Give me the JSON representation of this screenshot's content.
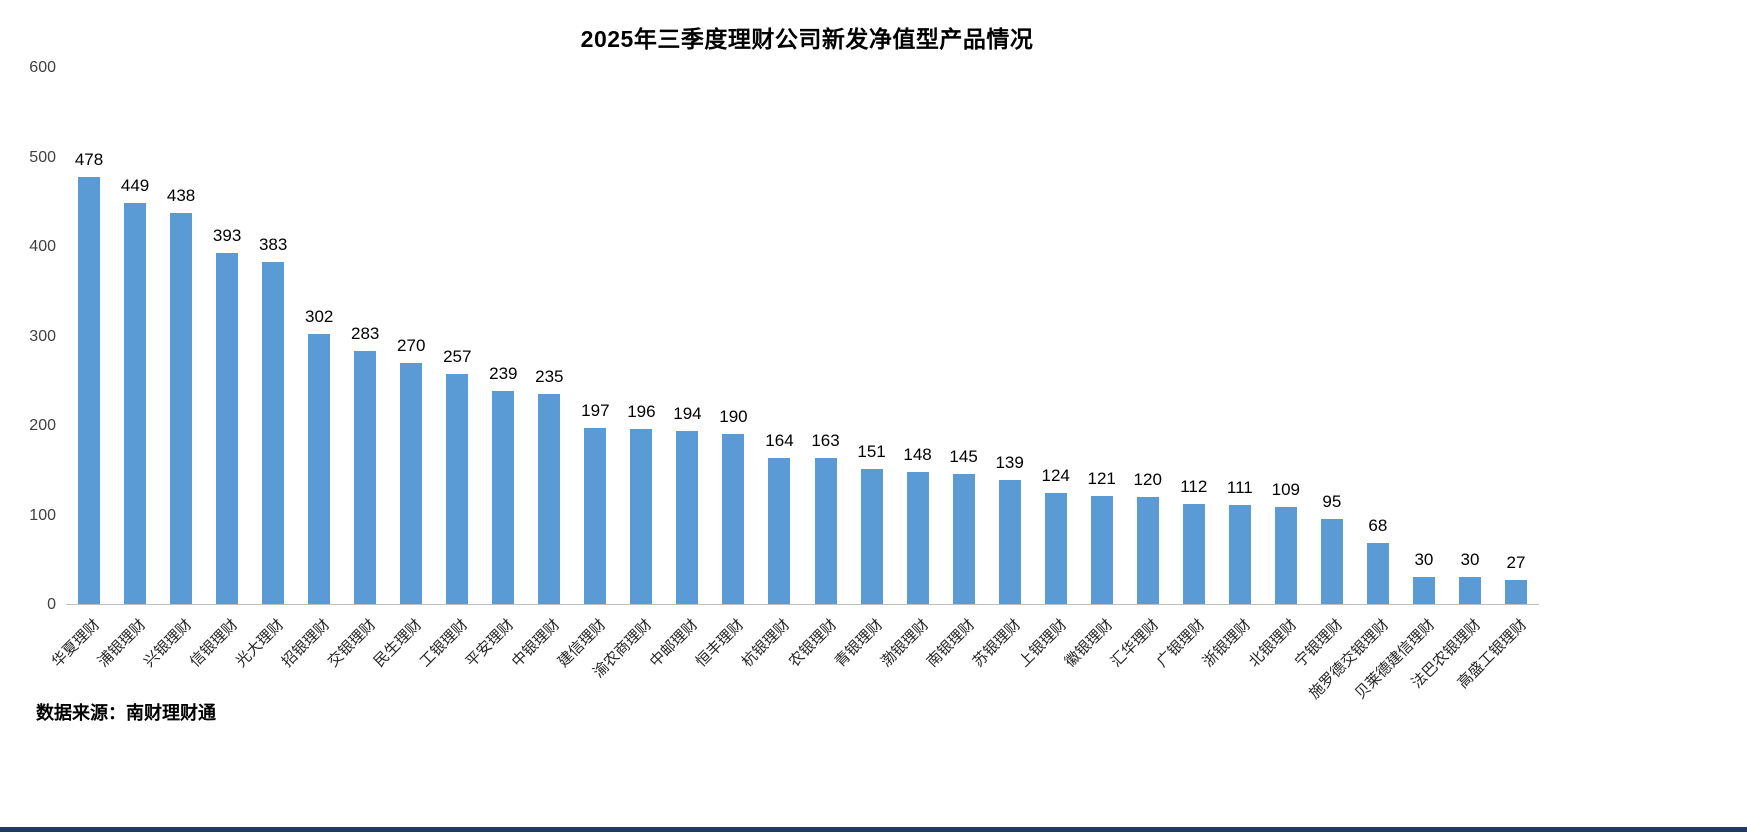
{
  "chart": {
    "title": "2025年三季度理财公司新发净值型产品情况",
    "source": "数据来源：南财理财通"
  },
  "colors": {
    "bar": "#5B9BD5",
    "axis_line": "#bfbfbf",
    "footer_bar": "#1F3864"
  },
  "chart_data": {
    "type": "bar",
    "title": "2025年三季度理财公司新发净值型产品情况",
    "categories": [
      "华夏理财",
      "浦银理财",
      "兴银理财",
      "信银理财",
      "光大理财",
      "招银理财",
      "交银理财",
      "民生理财",
      "工银理财",
      "平安理财",
      "中银理财",
      "建信理财",
      "渝农商理财",
      "中邮理财",
      "恒丰理财",
      "杭银理财",
      "农银理财",
      "青银理财",
      "渤银理财",
      "南银理财",
      "苏银理财",
      "上银理财",
      "徽银理财",
      "汇华理财",
      "广银理财",
      "浙银理财",
      "北银理财",
      "宁银理财",
      "施罗德交银理财",
      "贝莱德建信理财",
      "法巴农银理财",
      "高盛工银理财"
    ],
    "values": [
      478,
      449,
      438,
      393,
      383,
      302,
      283,
      270,
      257,
      239,
      235,
      197,
      196,
      194,
      190,
      164,
      163,
      151,
      148,
      145,
      139,
      124,
      121,
      120,
      112,
      111,
      109,
      95,
      68,
      30,
      30,
      27
    ],
    "xlabel": "",
    "ylabel": "",
    "ylim": [
      0,
      600
    ],
    "yticks": [
      0,
      100,
      200,
      300,
      400,
      500,
      600
    ],
    "grid": false,
    "legend": "none",
    "bar_color": "#5B9BD5",
    "value_labels": true,
    "source": "数据来源：南财理财通"
  }
}
